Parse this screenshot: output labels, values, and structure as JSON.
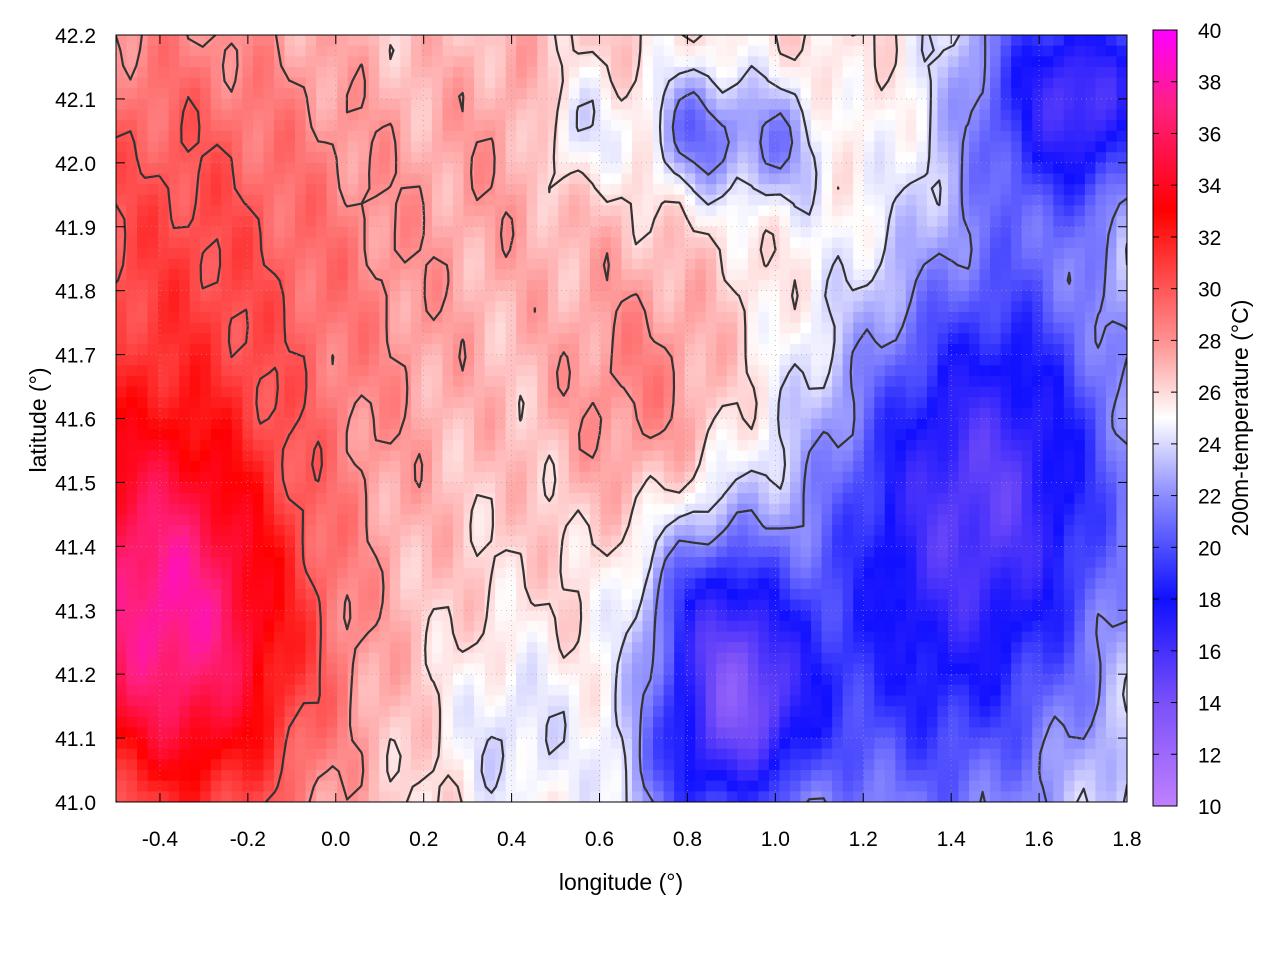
{
  "chart_data": {
    "type": "heatmap",
    "title": "",
    "xlabel": "longitude (°)",
    "ylabel": "latitude (°)",
    "colorbar_label": "200m-temperature (°C)",
    "xlim": [
      -0.5,
      1.8
    ],
    "ylim": [
      41.0,
      42.2
    ],
    "x_ticks": [
      "-0.4",
      "-0.2",
      "0.0",
      "0.2",
      "0.4",
      "0.6",
      "0.8",
      "1.0",
      "1.2",
      "1.4",
      "1.6",
      "1.8"
    ],
    "y_ticks": [
      "41.0",
      "41.1",
      "41.2",
      "41.3",
      "41.4",
      "41.5",
      "41.6",
      "41.7",
      "41.8",
      "41.9",
      "42.0",
      "42.1",
      "42.2"
    ],
    "colorbar_ticks": [
      "10",
      "12",
      "14",
      "16",
      "18",
      "20",
      "22",
      "24",
      "26",
      "28",
      "30",
      "32",
      "34",
      "36",
      "38",
      "40"
    ],
    "colorbar_range": [
      10,
      40
    ],
    "grid": true,
    "colormap": [
      {
        "value": 10,
        "color": "#c080ff"
      },
      {
        "value": 14,
        "color": "#7a50f8"
      },
      {
        "value": 18,
        "color": "#1010ff"
      },
      {
        "value": 22,
        "color": "#8c8cff"
      },
      {
        "value": 25,
        "color": "#ffffff"
      },
      {
        "value": 28,
        "color": "#ff9090"
      },
      {
        "value": 33,
        "color": "#ff0000"
      },
      {
        "value": 37,
        "color": "#ff2080"
      },
      {
        "value": 40,
        "color": "#ff00ff"
      }
    ],
    "field": {
      "base": 26,
      "features": [
        {
          "lon": -0.45,
          "lat": 41.35,
          "dT": 7,
          "r": 0.3
        },
        {
          "lon": -0.3,
          "lat": 41.2,
          "dT": 6,
          "r": 0.3
        },
        {
          "lon": -0.4,
          "lat": 41.9,
          "dT": 4,
          "r": 0.4
        },
        {
          "lon": 0.05,
          "lat": 41.75,
          "dT": 1.5,
          "r": 0.35
        },
        {
          "lon": 0.7,
          "lat": 41.65,
          "dT": 2.5,
          "r": 0.2
        },
        {
          "lon": 0.45,
          "lat": 42.05,
          "dT": 1.5,
          "r": 0.2
        },
        {
          "lon": 0.85,
          "lat": 41.3,
          "dT": -6,
          "r": 0.15
        },
        {
          "lon": 0.95,
          "lat": 41.15,
          "dT": -7,
          "r": 0.15
        },
        {
          "lon": 0.8,
          "lat": 41.05,
          "dT": -5,
          "r": 0.15
        },
        {
          "lon": 1.2,
          "lat": 41.2,
          "dT": -4,
          "r": 0.35
        },
        {
          "lon": 1.4,
          "lat": 41.5,
          "dT": -5,
          "r": 0.3
        },
        {
          "lon": 1.6,
          "lat": 41.45,
          "dT": -4,
          "r": 0.3
        },
        {
          "lon": 1.55,
          "lat": 41.75,
          "dT": -3,
          "r": 0.3
        },
        {
          "lon": 1.6,
          "lat": 42.12,
          "dT": -6,
          "r": 0.2
        },
        {
          "lon": 1.75,
          "lat": 42.1,
          "dT": -6,
          "r": 0.15
        },
        {
          "lon": 0.82,
          "lat": 42.05,
          "dT": -5,
          "r": 0.1
        },
        {
          "lon": 1.0,
          "lat": 42.03,
          "dT": -4,
          "r": 0.1
        },
        {
          "lon": 0.55,
          "lat": 42.05,
          "dT": -3,
          "r": 0.1
        },
        {
          "lon": 1.5,
          "lat": 41.05,
          "dT": -2.5,
          "r": 0.35
        },
        {
          "lon": 0.4,
          "lat": 41.1,
          "dT": -2,
          "r": 0.15
        }
      ]
    }
  }
}
